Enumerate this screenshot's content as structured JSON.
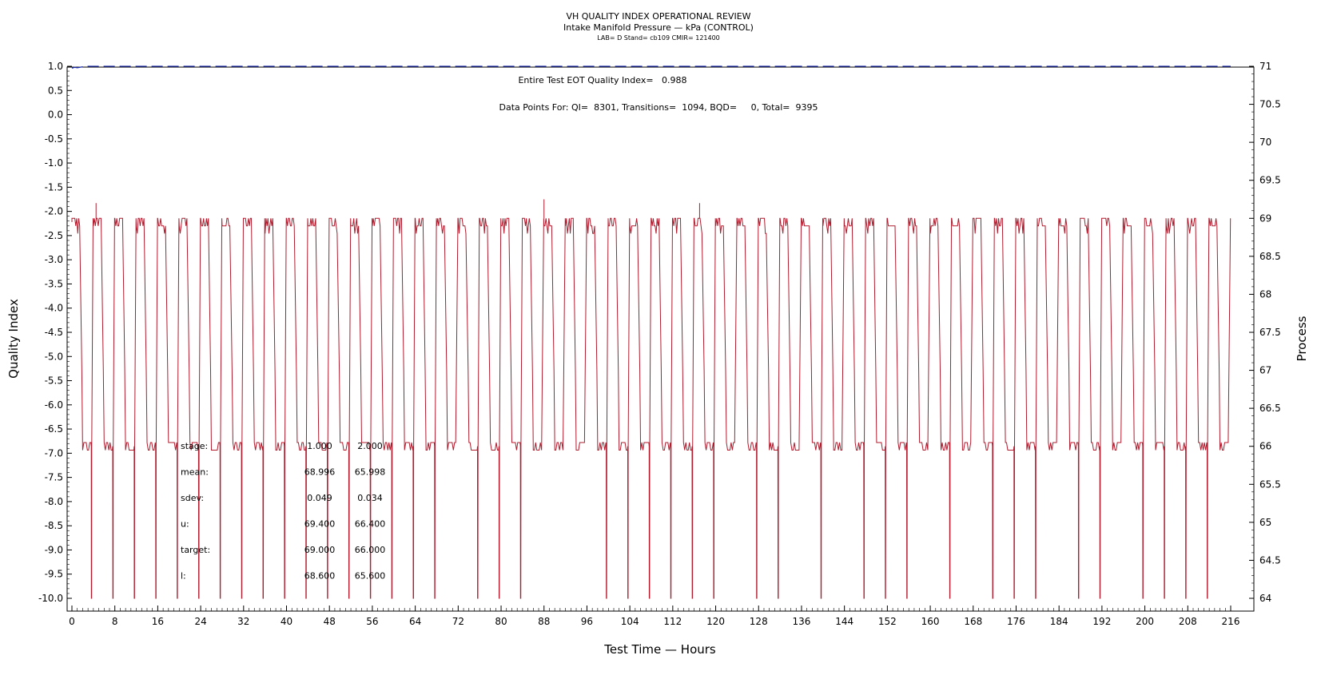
{
  "header": {
    "title": "VH QUALITY INDEX OPERATIONAL REVIEW",
    "subtitle": "Intake Manifold Pressure — kPa (CONTROL)",
    "info": "LAB= D Stand= cb109 CMIR= 121400"
  },
  "annotations": {
    "eot": "Entire Test EOT Quality Index=   0.988",
    "points": "Data Points For: QI=  8301, Transitions=  1094, BQD=     0, Total=  9395"
  },
  "stats": {
    "rows": [
      {
        "label": "stage:",
        "v1": "1.000",
        "v2": "2.000"
      },
      {
        "label": "mean:",
        "v1": "68.996",
        "v2": "65.998"
      },
      {
        "label": "sdev:",
        "v1": "0.049",
        "v2": "0.034"
      },
      {
        "label": "u:",
        "v1": "69.400",
        "v2": "66.400"
      },
      {
        "label": "target:",
        "v1": "69.000",
        "v2": "66.000"
      },
      {
        "label": "l:",
        "v1": "68.600",
        "v2": "65.600"
      }
    ]
  },
  "chart_data": {
    "type": "line",
    "xlabel": "Test Time — Hours",
    "ylabel": "Quality Index",
    "y2label": "Process",
    "xlim": [
      0,
      216
    ],
    "ylim": [
      -10,
      1
    ],
    "y2lim": [
      64,
      71
    ],
    "xticks": [
      "0",
      "8",
      "16",
      "24",
      "32",
      "40",
      "48",
      "56",
      "64",
      "72",
      "80",
      "88",
      "96",
      "104",
      "112",
      "120",
      "128",
      "136",
      "144",
      "152",
      "160",
      "168",
      "176",
      "184",
      "192",
      "200",
      "208",
      "216"
    ],
    "yticks": [
      "1.0",
      "0.5",
      "0.0",
      "-0.5",
      "-1.0",
      "-1.5",
      "-2.0",
      "-2.5",
      "-3.0",
      "-3.5",
      "-4.0",
      "-4.5",
      "-5.0",
      "-5.5",
      "-6.0",
      "-6.5",
      "-7.0",
      "-7.5",
      "-8.0",
      "-8.5",
      "-9.0",
      "-9.5",
      "-10.0"
    ],
    "y2ticks": [
      "71",
      "70.5",
      "70",
      "69.5",
      "69",
      "68.5",
      "68",
      "67.5",
      "67",
      "66.5",
      "66",
      "65.5",
      "65",
      "64.5",
      "64"
    ],
    "series": [
      {
        "name": "Quality Index",
        "color": "#1f2fa8",
        "style": "dashed",
        "axis": "left",
        "x": [
          0,
          0.5,
          1,
          2,
          3,
          216
        ],
        "y": [
          0.96,
          0.98,
          0.97,
          0.99,
          1.0,
          1.0
        ]
      },
      {
        "name": "Process",
        "color": "#b01c2e",
        "style": "solid",
        "axis": "right",
        "cycle_hours": 4,
        "stage1_level": 69.0,
        "stage2_level": 66.0,
        "bottom_level": 64.0,
        "high_band": [
          68.9,
          69.0
        ],
        "low_band": [
          65.95,
          66.05
        ],
        "spike_peaks": [
          {
            "x": 4.5,
            "y": 69.2
          },
          {
            "x": 88.0,
            "y": 69.25
          },
          {
            "x": 117.0,
            "y": 69.2
          }
        ],
        "dip_cycles_x": [
          2.6,
          6.5,
          10.5,
          14.5,
          18.5,
          22.5,
          26.5,
          30.5,
          34.5,
          38.5,
          42.5,
          46.5,
          50.5,
          54.5,
          58.5,
          62.5,
          66.5,
          74.5,
          78.5,
          82.5,
          98.5,
          102.5,
          106.5,
          110.5,
          114.5,
          118.5,
          126.5,
          130.5,
          138.5,
          146.5,
          150.5,
          154.5,
          162.5,
          170.5,
          174.5,
          178.5,
          186.5,
          190.5,
          198.5,
          202.5,
          206.5,
          210.5
        ]
      }
    ]
  }
}
